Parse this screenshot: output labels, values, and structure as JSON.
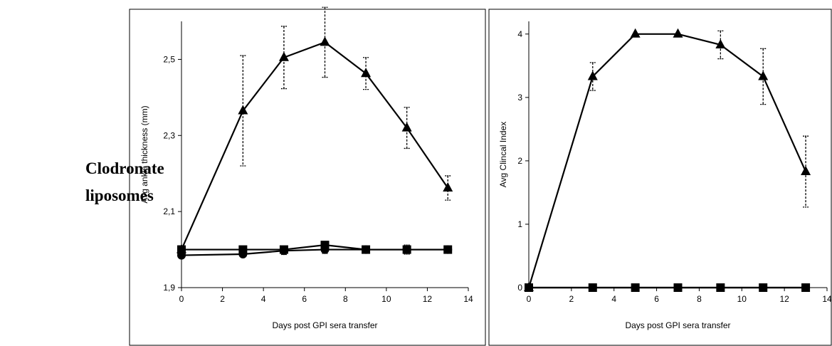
{
  "row_label": [
    "Clodronate",
    "liposomes"
  ],
  "chart_data": [
    {
      "type": "line",
      "xlabel": "Days post GPI sera transfer",
      "ylabel": "Avg ankle thickness (mm)",
      "xlim": [
        0,
        14
      ],
      "ylim": [
        1.9,
        2.6
      ],
      "xticks": [
        0,
        2,
        4,
        6,
        8,
        10,
        12,
        14
      ],
      "xtick_labels": [
        "0",
        "2",
        "4",
        "6",
        "8",
        "10",
        "12",
        "14"
      ],
      "yticks": [
        1.9,
        2.1,
        2.3,
        2.5
      ],
      "ytick_labels": [
        "1,9",
        "2,1",
        "2,3",
        "2,5"
      ],
      "grid": false,
      "legend": "none",
      "series": [
        {
          "marker": "triangle",
          "x": [
            0,
            3,
            5,
            7,
            9,
            11,
            13
          ],
          "y": [
            2.0,
            2.365,
            2.505,
            2.545,
            2.463,
            2.32,
            2.162
          ],
          "err": [
            0,
            0.145,
            0.082,
            0.092,
            0.042,
            0.054,
            0.032
          ]
        },
        {
          "marker": "square",
          "x": [
            0,
            3,
            5,
            7,
            9,
            11,
            13
          ],
          "y": [
            2.0,
            2.0,
            2.0,
            2.012,
            2.0,
            2.0,
            2.0
          ],
          "err": [
            0.01,
            0,
            0.006,
            0.008,
            0.004,
            0.012,
            0.006
          ]
        },
        {
          "marker": "circle",
          "x": [
            0,
            3,
            5,
            7,
            9,
            11,
            13
          ],
          "y": [
            1.985,
            1.988,
            1.997,
            2.0,
            2.0,
            2.0,
            2.0
          ],
          "err": [
            0,
            0,
            0.01,
            0.01,
            0.006,
            0.006,
            0.005
          ]
        }
      ]
    },
    {
      "type": "line",
      "xlabel": "Days post GPI sera transfer",
      "ylabel": "Avg Clincal Index",
      "xlim": [
        0,
        14
      ],
      "ylim": [
        0,
        4.2
      ],
      "xticks": [
        0,
        2,
        4,
        6,
        8,
        10,
        12,
        14
      ],
      "xtick_labels": [
        "0",
        "2",
        "4",
        "6",
        "8",
        "10",
        "12",
        "14"
      ],
      "yticks": [
        0,
        1,
        2,
        3,
        4
      ],
      "ytick_labels": [
        "0",
        "1",
        "2",
        "3",
        "4"
      ],
      "grid": false,
      "legend": "none",
      "series": [
        {
          "marker": "triangle",
          "x": [
            0,
            3,
            5,
            7,
            9,
            11,
            13
          ],
          "y": [
            0,
            3.33,
            4.0,
            4.0,
            3.83,
            3.33,
            1.83
          ],
          "err": [
            0,
            0.22,
            0,
            0,
            0.22,
            0.44,
            0.56
          ]
        },
        {
          "marker": "square",
          "x": [
            0,
            3,
            5,
            7,
            9,
            11,
            13
          ],
          "y": [
            0,
            0,
            0,
            0,
            0,
            0,
            0
          ],
          "err": [
            0,
            0,
            0,
            0,
            0,
            0,
            0
          ]
        },
        {
          "marker": "circle",
          "x": [
            0,
            3,
            5,
            7,
            9,
            11,
            13
          ],
          "y": [
            0,
            0,
            0,
            0,
            0,
            0,
            0
          ],
          "err": [
            0,
            0,
            0,
            0,
            0,
            0,
            0
          ]
        }
      ]
    }
  ]
}
